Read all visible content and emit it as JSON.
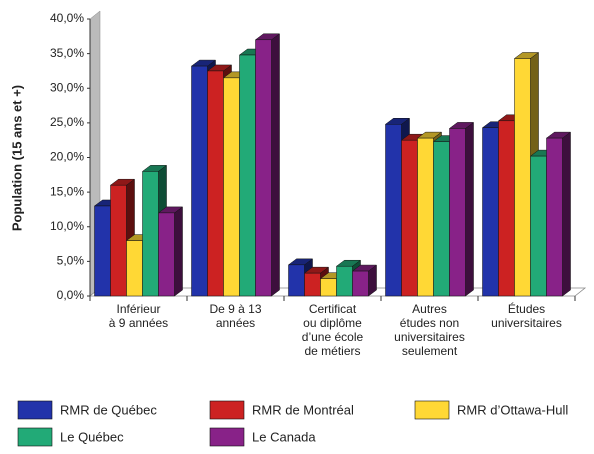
{
  "chart_data": {
    "type": "bar3d",
    "y_axis_label": "Population (15 ans et +)",
    "categories": [
      "Inférieur\nà 9 années",
      "De 9 à 13\nannées",
      "Certificat\nou diplôme\nd’une école\nde métiers",
      "Autres\nétudes non\nuniversitaires\nseulement",
      "Études\nuniversitaires"
    ],
    "series": [
      {
        "name": "RMR de Québec",
        "color": "#2233aa",
        "values": [
          13.0,
          33.2,
          4.5,
          24.8,
          24.3
        ]
      },
      {
        "name": "RMR de Montréal",
        "color": "#cc2222",
        "values": [
          16.0,
          32.5,
          3.3,
          22.5,
          25.3
        ]
      },
      {
        "name": "RMR d’Ottawa-Hull",
        "color": "#ffd835",
        "values": [
          8.0,
          31.5,
          2.5,
          22.8,
          34.3
        ]
      },
      {
        "name": "Le Québec",
        "color": "#22aa77",
        "values": [
          18.0,
          34.8,
          4.3,
          22.3,
          20.2
        ]
      },
      {
        "name": "Le Canada",
        "color": "#882288",
        "values": [
          12.0,
          37.0,
          3.6,
          24.2,
          22.8
        ]
      }
    ],
    "ylim": [
      0,
      40
    ],
    "yticks": [
      {
        "value": 0,
        "label": "0,0%"
      },
      {
        "value": 5,
        "label": "5,0%"
      },
      {
        "value": 10,
        "label": "10,0%"
      },
      {
        "value": 15,
        "label": "15,0%"
      },
      {
        "value": 20,
        "label": "20,0%"
      },
      {
        "value": 25,
        "label": "25,0%"
      },
      {
        "value": 30,
        "label": "30,0%"
      },
      {
        "value": 35,
        "label": "35,0%"
      },
      {
        "value": 40,
        "label": "40,0%"
      }
    ],
    "grid": false
  }
}
